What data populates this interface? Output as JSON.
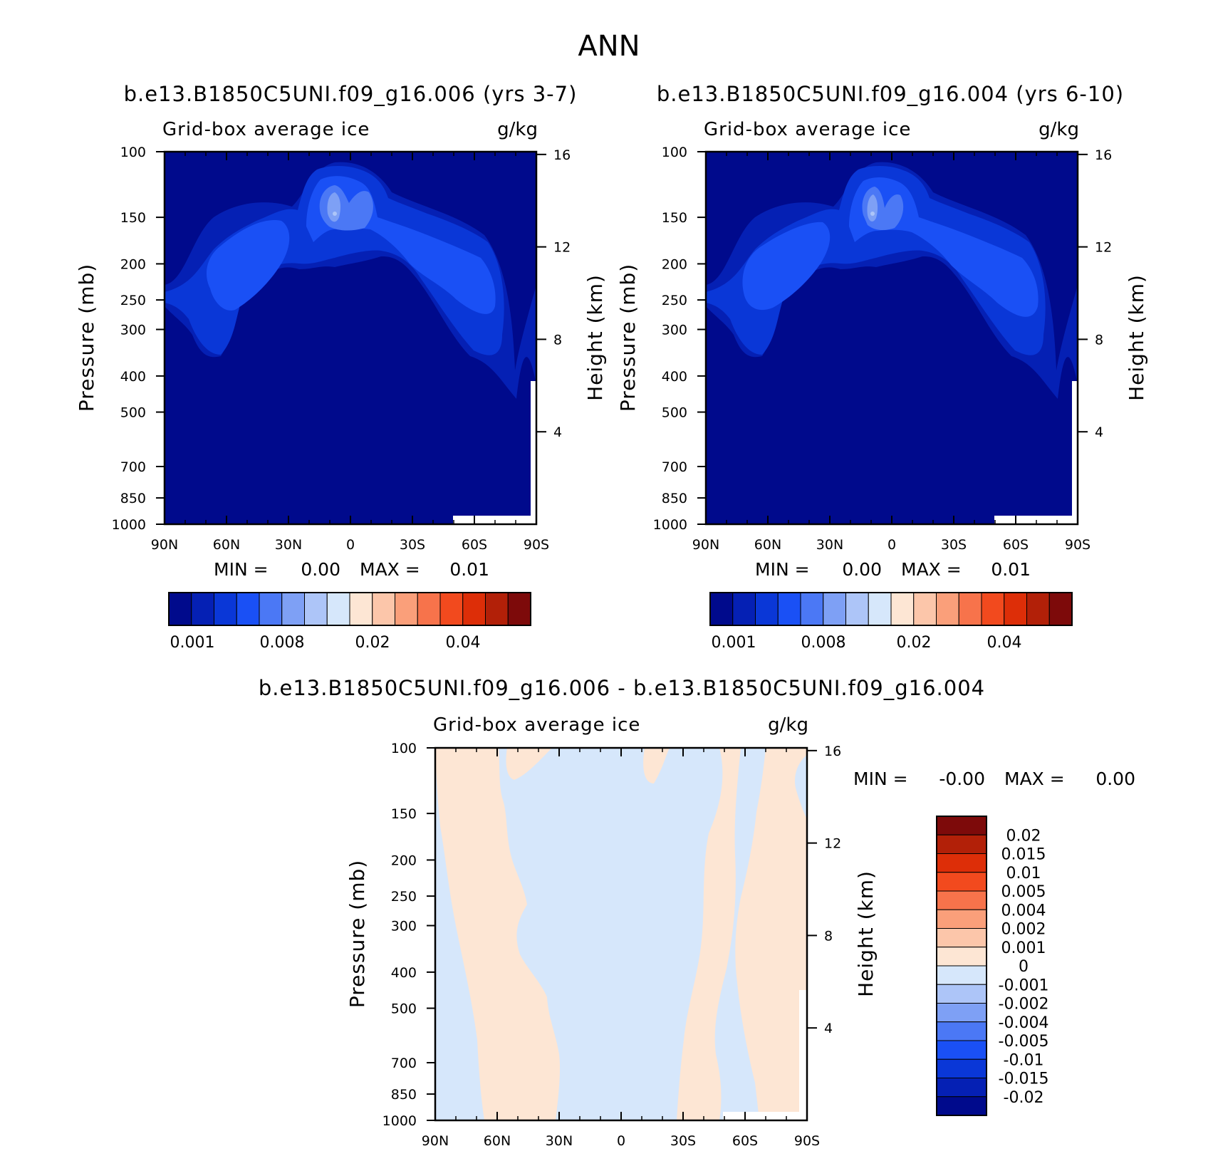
{
  "page_title": "ANN",
  "chart_data": [
    {
      "type": "heatmap",
      "title": "b.e13.B1850C5UNI.f09_g16.006 (yrs 3-7)",
      "variable_label": "Grid-box average ice",
      "units": "g/kg",
      "ylabel": "Pressure (mb)",
      "ylabel_right": "Height (km)",
      "x_ticks": [
        "90N",
        "60N",
        "30N",
        "0",
        "30S",
        "60S",
        "90S"
      ],
      "y_ticks": [
        100,
        150,
        200,
        250,
        300,
        400,
        500,
        700,
        850,
        1000
      ],
      "y_right_ticks": [
        16,
        12,
        8,
        4
      ],
      "min_label": "MIN =",
      "min_value": "0.00",
      "max_label": "MAX =",
      "max_value": "0.01",
      "colorbar_labels": [
        "0.001",
        "0.008",
        "0.02",
        "0.04"
      ],
      "colorbar_colors": [
        "#000a8c",
        "#0520b4",
        "#0a37d7",
        "#1a50f5",
        "#4b78f5",
        "#7ea0f5",
        "#adc5f8",
        "#d6e7fb",
        "#fde6d4",
        "#fcc6aa",
        "#fa9f7a",
        "#f7734b",
        "#f24a1e",
        "#dd2e08",
        "#b22008",
        "#7d0a0a"
      ],
      "fields": {
        "base": "#000a8c",
        "levels": [
          "#0520b4",
          "#0a37d7",
          "#1a50f5",
          "#4b78f5",
          "#7ea0f5"
        ]
      }
    },
    {
      "type": "heatmap",
      "title": "b.e13.B1850C5UNI.f09_g16.004 (yrs 6-10)",
      "variable_label": "Grid-box average ice",
      "units": "g/kg",
      "ylabel": "Pressure (mb)",
      "ylabel_right": "Height (km)",
      "x_ticks": [
        "90N",
        "60N",
        "30N",
        "0",
        "30S",
        "60S",
        "90S"
      ],
      "y_ticks": [
        100,
        150,
        200,
        250,
        300,
        400,
        500,
        700,
        850,
        1000
      ],
      "y_right_ticks": [
        16,
        12,
        8,
        4
      ],
      "min_label": "MIN =",
      "min_value": "0.00",
      "max_label": "MAX =",
      "max_value": "0.01",
      "colorbar_labels": [
        "0.001",
        "0.008",
        "0.02",
        "0.04"
      ],
      "colorbar_colors": [
        "#000a8c",
        "#0520b4",
        "#0a37d7",
        "#1a50f5",
        "#4b78f5",
        "#7ea0f5",
        "#adc5f8",
        "#d6e7fb",
        "#fde6d4",
        "#fcc6aa",
        "#fa9f7a",
        "#f7734b",
        "#f24a1e",
        "#dd2e08",
        "#b22008",
        "#7d0a0a"
      ]
    },
    {
      "type": "heatmap",
      "title": "b.e13.B1850C5UNI.f09_g16.006 - b.e13.B1850C5UNI.f09_g16.004",
      "variable_label": "Grid-box average ice",
      "units": "g/kg",
      "ylabel": "Pressure (mb)",
      "ylabel_right": "Height (km)",
      "x_ticks": [
        "90N",
        "60N",
        "30N",
        "0",
        "30S",
        "60S",
        "90S"
      ],
      "y_ticks": [
        100,
        150,
        200,
        250,
        300,
        400,
        500,
        700,
        850,
        1000
      ],
      "y_right_ticks": [
        16,
        12,
        8,
        4
      ],
      "min_label": "MIN =",
      "min_value": "-0.00",
      "max_label": "MAX =",
      "max_value": "0.00",
      "colorbar_labels": [
        "0.02",
        "0.015",
        "0.01",
        "0.005",
        "0.004",
        "0.002",
        "0.001",
        "0",
        "-0.001",
        "-0.002",
        "-0.004",
        "-0.005",
        "-0.01",
        "-0.015",
        "-0.02"
      ],
      "colorbar_colors": [
        "#7d0a0a",
        "#b22008",
        "#dd2e08",
        "#f24a1e",
        "#f7734b",
        "#fa9f7a",
        "#fcc6aa",
        "#fde6d4",
        "#d6e7fb",
        "#adc5f8",
        "#7ea0f5",
        "#4b78f5",
        "#1a50f5",
        "#0a37d7",
        "#0520b4",
        "#000a8c"
      ],
      "fields": {
        "positive": "#fde6d4",
        "negative": "#d6e7fb"
      }
    }
  ]
}
